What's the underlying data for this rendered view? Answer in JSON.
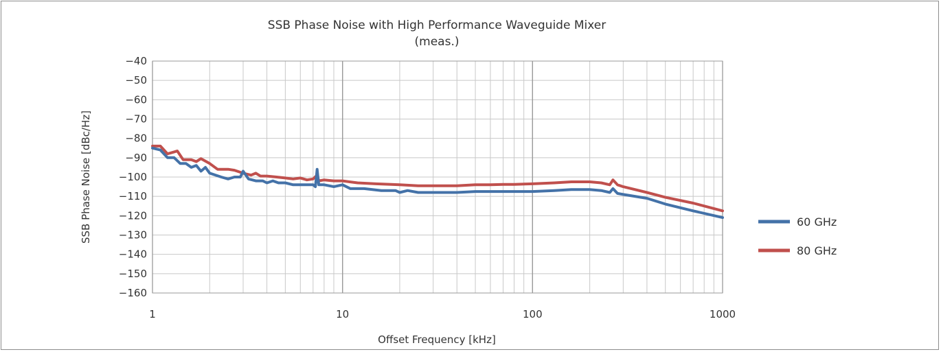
{
  "chart_data": {
    "type": "line",
    "title": "SSB Phase Noise with High Performance Waveguide Mixer",
    "subtitle": "(meas.)",
    "xlabel": "Offset Frequency [kHz]",
    "ylabel": "SSB Phase Noise [dBc/Hz]",
    "x_scale": "log",
    "xlim": [
      1,
      1000
    ],
    "ylim": [
      -160,
      -40
    ],
    "x_ticks": [
      "1",
      "10",
      "100",
      "1000"
    ],
    "y_ticks": [
      "−40",
      "−50",
      "−60",
      "−70",
      "−80",
      "−90",
      "−100",
      "−110",
      "−120",
      "−130",
      "−140",
      "−150",
      "−160"
    ],
    "grid": true,
    "legend_position": "right",
    "series": [
      {
        "name": "60 GHz",
        "color": "#4472a8",
        "points": [
          [
            1,
            -85
          ],
          [
            1.1,
            -86
          ],
          [
            1.2,
            -90
          ],
          [
            1.3,
            -90
          ],
          [
            1.4,
            -93
          ],
          [
            1.5,
            -93
          ],
          [
            1.6,
            -95
          ],
          [
            1.7,
            -94
          ],
          [
            1.8,
            -97
          ],
          [
            1.9,
            -95
          ],
          [
            2,
            -98
          ],
          [
            2.3,
            -100
          ],
          [
            2.5,
            -101
          ],
          [
            2.7,
            -100
          ],
          [
            2.9,
            -100
          ],
          [
            3,
            -97
          ],
          [
            3.2,
            -101
          ],
          [
            3.5,
            -102
          ],
          [
            3.8,
            -102
          ],
          [
            4,
            -103
          ],
          [
            4.3,
            -102
          ],
          [
            4.6,
            -103
          ],
          [
            5,
            -103
          ],
          [
            5.5,
            -104
          ],
          [
            6,
            -104
          ],
          [
            6.5,
            -104
          ],
          [
            7,
            -104
          ],
          [
            7.2,
            -105
          ],
          [
            7.35,
            -96
          ],
          [
            7.5,
            -104
          ],
          [
            8,
            -104
          ],
          [
            9,
            -105
          ],
          [
            10,
            -104
          ],
          [
            11,
            -106
          ],
          [
            13,
            -106
          ],
          [
            16,
            -107
          ],
          [
            19,
            -107
          ],
          [
            20,
            -108
          ],
          [
            22,
            -107
          ],
          [
            25,
            -108
          ],
          [
            30,
            -108
          ],
          [
            35,
            -108
          ],
          [
            40,
            -108
          ],
          [
            50,
            -107.5
          ],
          [
            60,
            -107.5
          ],
          [
            70,
            -107.5
          ],
          [
            80,
            -107.5
          ],
          [
            100,
            -107.5
          ],
          [
            130,
            -107
          ],
          [
            160,
            -106.5
          ],
          [
            200,
            -106.5
          ],
          [
            230,
            -107
          ],
          [
            255,
            -108
          ],
          [
            265,
            -106
          ],
          [
            280,
            -108.5
          ],
          [
            300,
            -109
          ],
          [
            400,
            -111
          ],
          [
            500,
            -114
          ],
          [
            700,
            -117.5
          ],
          [
            1000,
            -121
          ]
        ]
      },
      {
        "name": "80 GHz",
        "color": "#c0504d",
        "points": [
          [
            1,
            -84
          ],
          [
            1.1,
            -84
          ],
          [
            1.2,
            -88
          ],
          [
            1.3,
            -87
          ],
          [
            1.35,
            -86.5
          ],
          [
            1.45,
            -91
          ],
          [
            1.6,
            -91
          ],
          [
            1.7,
            -92
          ],
          [
            1.8,
            -90.5
          ],
          [
            2,
            -93
          ],
          [
            2.2,
            -96
          ],
          [
            2.5,
            -96
          ],
          [
            2.7,
            -96.5
          ],
          [
            3,
            -98
          ],
          [
            3.3,
            -99
          ],
          [
            3.5,
            -98
          ],
          [
            3.7,
            -99.5
          ],
          [
            4,
            -99.5
          ],
          [
            4.5,
            -100
          ],
          [
            5,
            -100.5
          ],
          [
            5.5,
            -101
          ],
          [
            6,
            -100.5
          ],
          [
            6.5,
            -101.5
          ],
          [
            7,
            -101
          ],
          [
            7.35,
            -99
          ],
          [
            7.5,
            -102
          ],
          [
            8,
            -101.5
          ],
          [
            9,
            -102
          ],
          [
            10,
            -102
          ],
          [
            12,
            -103
          ],
          [
            15,
            -103.5
          ],
          [
            20,
            -104
          ],
          [
            25,
            -104.5
          ],
          [
            30,
            -104.5
          ],
          [
            40,
            -104.5
          ],
          [
            50,
            -104
          ],
          [
            60,
            -104
          ],
          [
            70,
            -103.8
          ],
          [
            80,
            -103.8
          ],
          [
            100,
            -103.5
          ],
          [
            130,
            -103
          ],
          [
            160,
            -102.5
          ],
          [
            200,
            -102.5
          ],
          [
            230,
            -103
          ],
          [
            255,
            -104
          ],
          [
            265,
            -101.5
          ],
          [
            280,
            -104
          ],
          [
            300,
            -105
          ],
          [
            400,
            -108
          ],
          [
            500,
            -110.5
          ],
          [
            700,
            -113.5
          ],
          [
            1000,
            -117.5
          ]
        ]
      }
    ]
  }
}
